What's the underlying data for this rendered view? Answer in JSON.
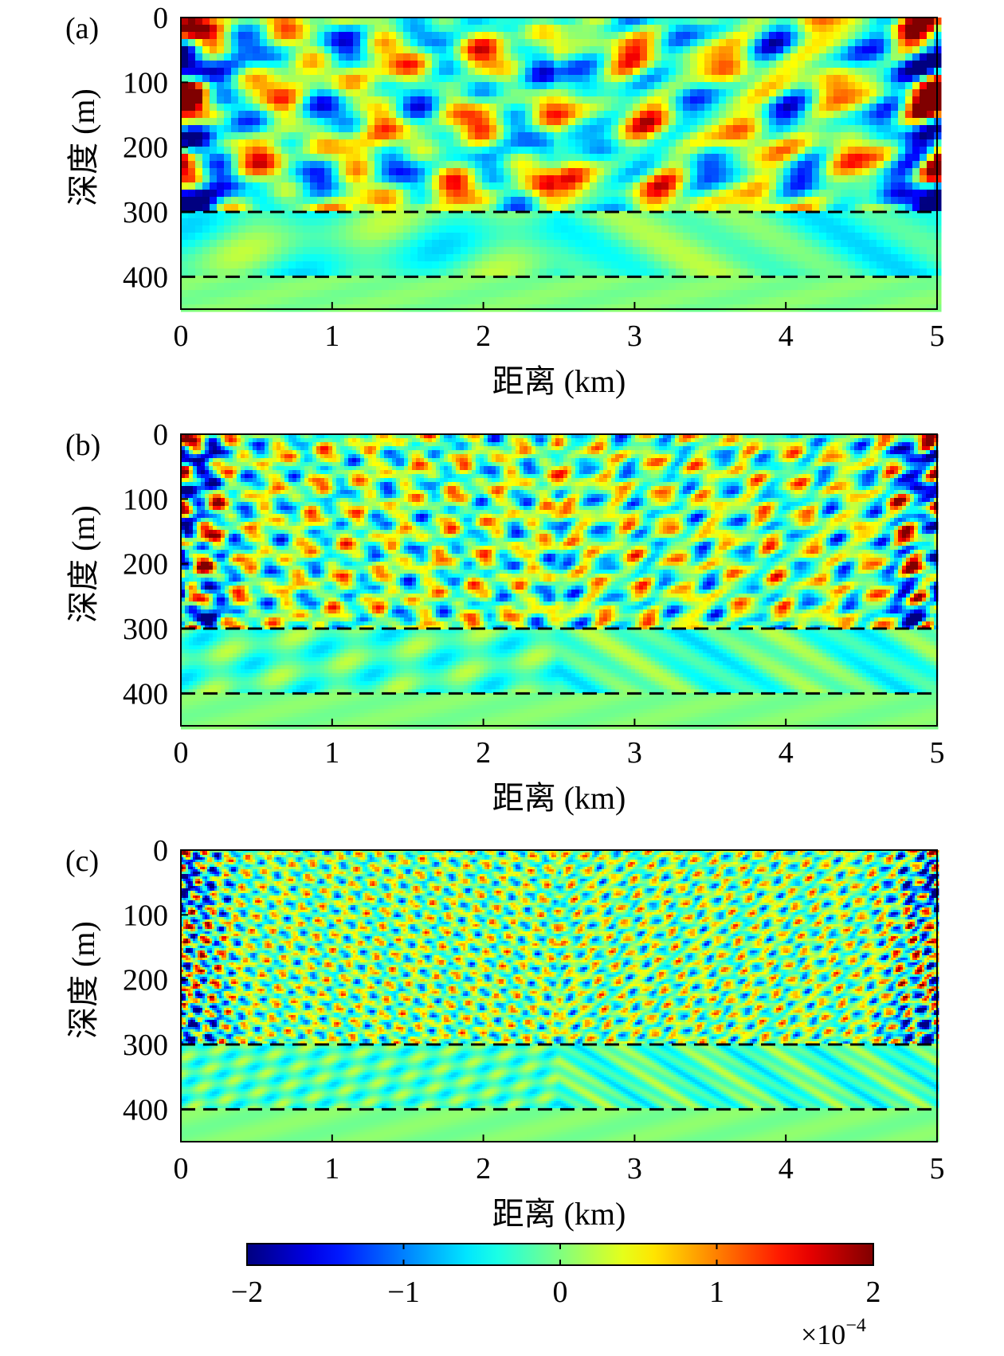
{
  "figure": {
    "colorbar": {
      "colormap": "jet",
      "range": [
        -2,
        2
      ],
      "ticks": [
        "−2",
        "−1",
        "0",
        "1",
        "2"
      ],
      "tick_values": [
        -2,
        -1,
        0,
        1,
        2
      ],
      "exponent_label": "×10",
      "exponent_power": "−4"
    }
  },
  "chart_data": [
    {
      "type": "heatmap",
      "panel_label": "(a)",
      "xlabel": "距离 (km)",
      "ylabel": "深度 (m)",
      "xlim": [
        0,
        5
      ],
      "ylim": [
        0,
        450
      ],
      "y_reversed": true,
      "xticks": [
        "0",
        "1",
        "2",
        "3",
        "4",
        "5"
      ],
      "yticks": [
        "0",
        "100",
        "200",
        "300",
        "400"
      ],
      "xtick_values": [
        0,
        1,
        2,
        3,
        4,
        5
      ],
      "ytick_values": [
        0,
        100,
        200,
        300,
        400
      ],
      "dashed_lines_depth": [
        300,
        400
      ],
      "texture": "coarse"
    },
    {
      "type": "heatmap",
      "panel_label": "(b)",
      "xlabel": "距离 (km)",
      "ylabel": "深度 (m)",
      "xlim": [
        0,
        5
      ],
      "ylim": [
        0,
        450
      ],
      "y_reversed": true,
      "xticks": [
        "0",
        "1",
        "2",
        "3",
        "4",
        "5"
      ],
      "yticks": [
        "0",
        "100",
        "200",
        "300",
        "400"
      ],
      "xtick_values": [
        0,
        1,
        2,
        3,
        4,
        5
      ],
      "ytick_values": [
        0,
        100,
        200,
        300,
        400
      ],
      "dashed_lines_depth": [
        300,
        400
      ],
      "texture": "medium"
    },
    {
      "type": "heatmap",
      "panel_label": "(c)",
      "xlabel": "距离 (km)",
      "ylabel": "深度 (m)",
      "xlim": [
        0,
        5
      ],
      "ylim": [
        0,
        450
      ],
      "y_reversed": true,
      "xticks": [
        "0",
        "1",
        "2",
        "3",
        "4",
        "5"
      ],
      "yticks": [
        "0",
        "100",
        "200",
        "300",
        "400"
      ],
      "xtick_values": [
        0,
        1,
        2,
        3,
        4,
        5
      ],
      "ytick_values": [
        0,
        100,
        200,
        300,
        400
      ],
      "dashed_lines_depth": [
        300,
        400
      ],
      "texture": "fine"
    }
  ]
}
